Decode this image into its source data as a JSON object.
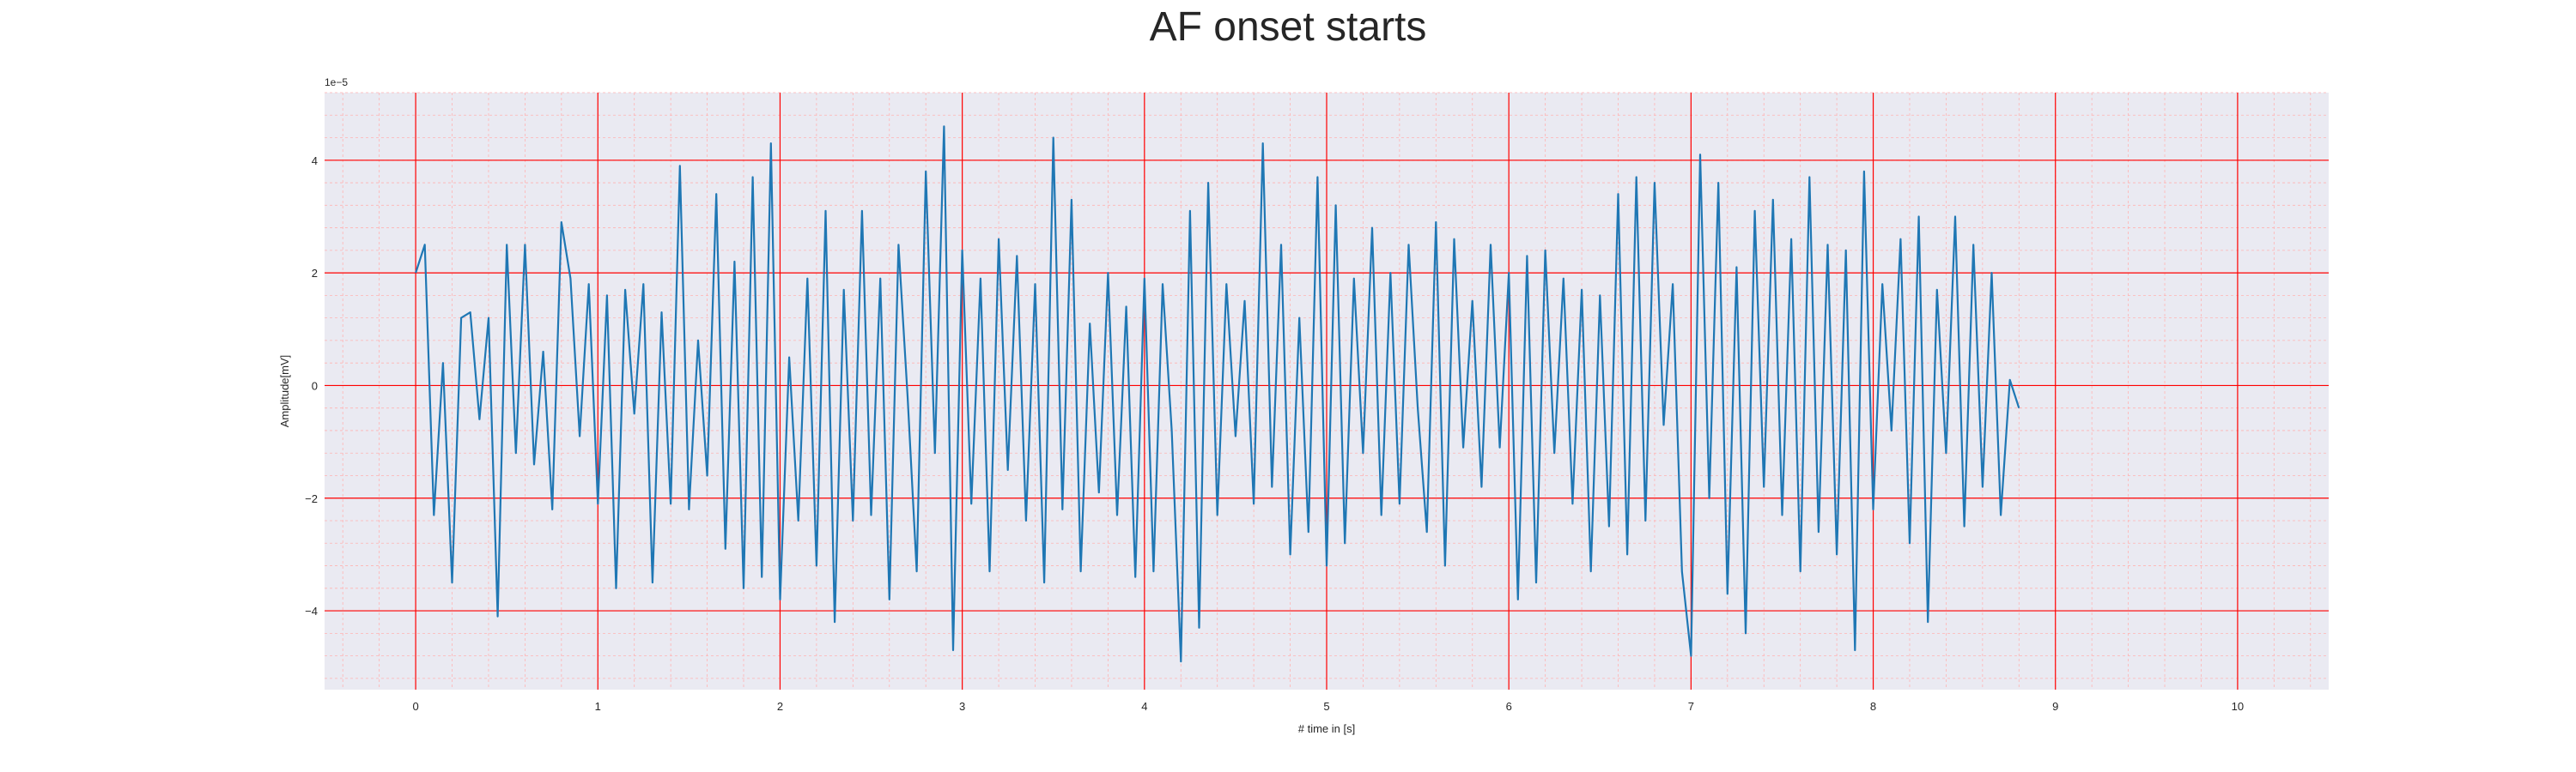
{
  "chart_data": {
    "type": "line",
    "title": "AF onset starts",
    "xlabel": "# time in [s]",
    "ylabel": "Amplitude[mV]",
    "y_offset_label": "1e−5",
    "xlim": [
      -0.5,
      10.5
    ],
    "ylim": [
      -5.4,
      5.2
    ],
    "x_ticks": [
      0,
      1,
      2,
      3,
      4,
      5,
      6,
      7,
      8,
      9,
      10
    ],
    "x_tick_labels": [
      "0",
      "1",
      "2",
      "3",
      "4",
      "5",
      "6",
      "7",
      "8",
      "9",
      "10"
    ],
    "y_ticks": [
      -4,
      -2,
      0,
      2,
      4
    ],
    "y_tick_labels": [
      "−4",
      "−2",
      "0",
      "2",
      "4"
    ],
    "grid": "on",
    "colors": {
      "line": "#1f77b4",
      "background": "#eaeaf2",
      "major_grid": "#ff0000",
      "minor_grid": "#ffb3b3"
    },
    "series": [
      {
        "x_start": 0,
        "x_step": 0.05,
        "values": [
          2.0,
          2.5,
          -2.3,
          0.4,
          -3.5,
          1.2,
          1.3,
          -0.6,
          1.2,
          -4.1,
          2.5,
          -1.2,
          2.5,
          -1.4,
          0.6,
          -2.2,
          2.9,
          1.9,
          -0.9,
          1.8,
          -2.1,
          1.6,
          -3.6,
          1.7,
          -0.5,
          1.8,
          -3.5,
          1.3,
          -2.1,
          3.9,
          -2.2,
          0.8,
          -1.6,
          3.4,
          -2.9,
          2.2,
          -3.6,
          3.7,
          -3.4,
          4.3,
          -3.8,
          0.5,
          -2.4,
          1.9,
          -3.2,
          3.1,
          -4.2,
          1.7,
          -2.4,
          3.1,
          -2.3,
          1.9,
          -3.8,
          2.5,
          -0.2,
          -3.3,
          3.8,
          -1.2,
          4.6,
          -4.7,
          2.4,
          -2.1,
          1.9,
          -3.3,
          2.6,
          -1.5,
          2.3,
          -2.4,
          1.8,
          -3.5,
          4.4,
          -2.2,
          3.3,
          -3.3,
          1.1,
          -1.9,
          2.0,
          -2.3,
          1.4,
          -3.4,
          1.9,
          -3.3,
          1.8,
          -0.8,
          -4.9,
          3.1,
          -4.3,
          3.6,
          -2.3,
          1.8,
          -0.9,
          1.5,
          -2.1,
          4.3,
          -1.8,
          2.5,
          -3.0,
          1.2,
          -2.6,
          3.7,
          -3.2,
          3.2,
          -2.8,
          1.9,
          -1.2,
          2.8,
          -2.3,
          2.0,
          -2.1,
          2.5,
          -0.4,
          -2.6,
          2.9,
          -3.2,
          2.6,
          -1.1,
          1.5,
          -1.8,
          2.5,
          -1.1,
          2.0,
          -3.8,
          2.3,
          -3.5,
          2.4,
          -1.2,
          1.9,
          -2.1,
          1.7,
          -3.3,
          1.6,
          -2.5,
          3.4,
          -3.0,
          3.7,
          -2.4,
          3.6,
          -0.7,
          1.8,
          -3.3,
          -4.8,
          4.1,
          -2.0,
          3.6,
          -3.7,
          2.1,
          -4.4,
          3.1,
          -1.8,
          3.3,
          -2.3,
          2.6,
          -3.3,
          3.7,
          -2.6,
          2.5,
          -3.0,
          2.4,
          -4.7,
          3.8,
          -2.2,
          1.8,
          -0.8,
          2.6,
          -2.8,
          3.0,
          -4.2,
          1.7,
          -1.2,
          3.0,
          -2.5,
          2.5,
          -1.8,
          2.0,
          -2.3,
          0.1,
          -0.4
        ]
      }
    ]
  }
}
